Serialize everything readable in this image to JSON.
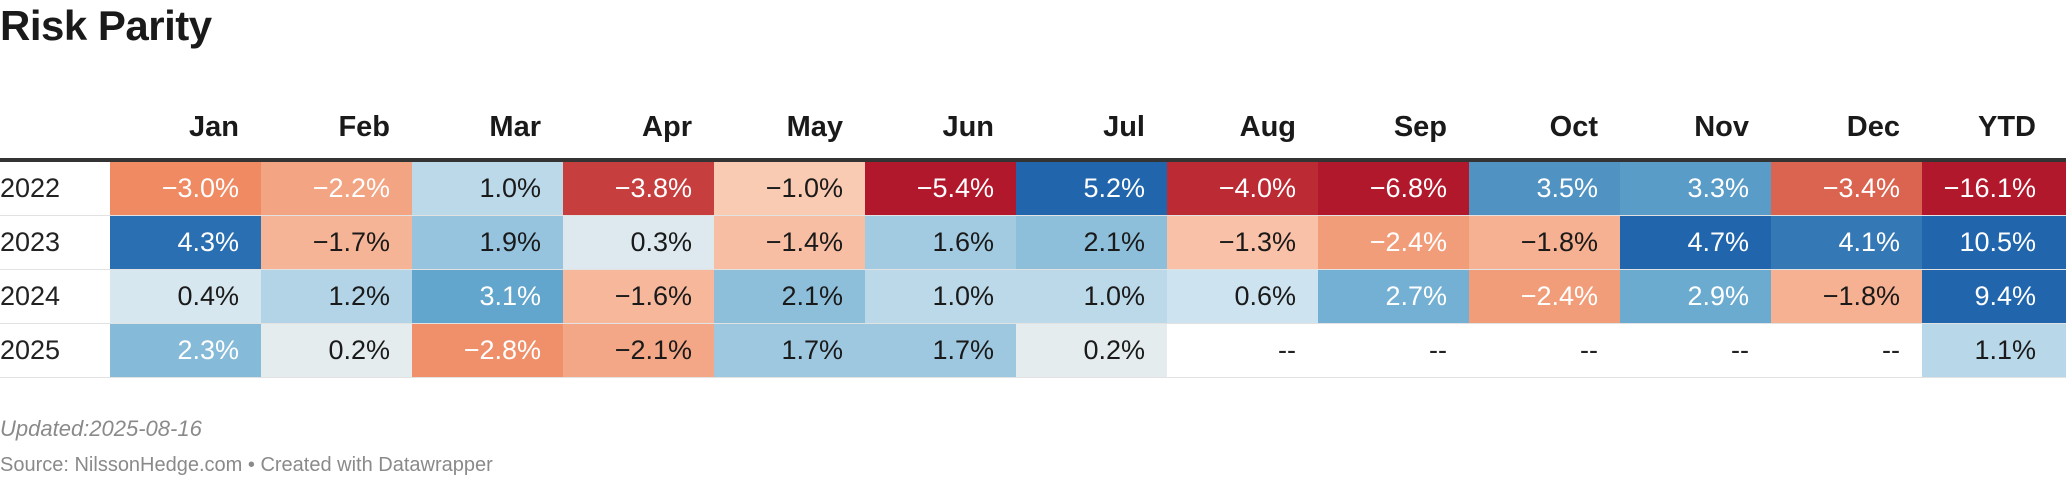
{
  "title": "Risk Parity",
  "footer": {
    "updated": "Updated:2025-08-16",
    "source": "Source: NilssonHedge.com • Created with Datawrapper"
  },
  "colors": {
    "neg_strong": "#b2182b",
    "neg_mid": "#ef8a62",
    "neg_light": "#fddbc7",
    "neutral": "#f0f0ec",
    "pos_light": "#d1e5f0",
    "pos_mid": "#67a9cf",
    "pos_strong": "#2166ac",
    "dark_text": "#1a1a1a",
    "light_text": "#ffffff"
  },
  "chart_data": {
    "type": "heatmap",
    "title": "Risk Parity",
    "columns": [
      "Jan",
      "Feb",
      "Mar",
      "Apr",
      "May",
      "Jun",
      "Jul",
      "Aug",
      "Sep",
      "Oct",
      "Nov",
      "Dec",
      "YTD"
    ],
    "rows": [
      {
        "year": "2022",
        "values": [
          -3.0,
          -2.2,
          1.0,
          -3.8,
          -1.0,
          -5.4,
          5.2,
          -4.0,
          -6.8,
          3.5,
          3.3,
          -3.4,
          -16.1
        ]
      },
      {
        "year": "2023",
        "values": [
          4.3,
          -1.7,
          1.9,
          0.3,
          -1.4,
          1.6,
          2.1,
          -1.3,
          -2.4,
          -1.8,
          4.7,
          4.1,
          10.5
        ]
      },
      {
        "year": "2024",
        "values": [
          0.4,
          1.2,
          3.1,
          -1.6,
          2.1,
          1.0,
          1.0,
          0.6,
          2.7,
          -2.4,
          2.9,
          -1.8,
          9.4
        ]
      },
      {
        "year": "2025",
        "values": [
          2.3,
          0.2,
          -2.8,
          -2.1,
          1.7,
          1.7,
          0.2,
          null,
          null,
          null,
          null,
          null,
          1.1
        ]
      }
    ],
    "missing_label": "--",
    "unit": "%"
  }
}
